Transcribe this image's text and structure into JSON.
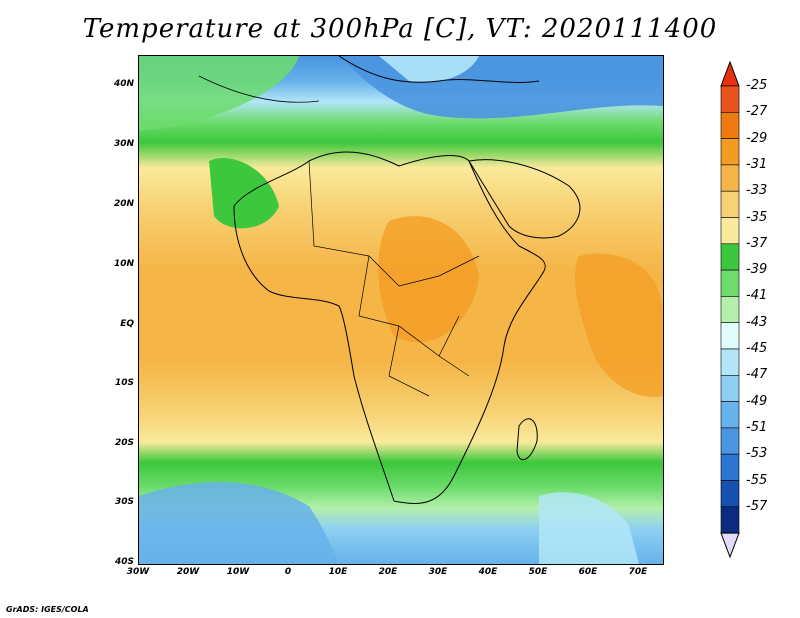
{
  "title": "Temperature at 300hPa [C], VT: 2020111400",
  "footer": "GrADS: IGES/COLA",
  "lat_labels": [
    "40N",
    "30N",
    "20N",
    "10N",
    "EQ",
    "10S",
    "20S",
    "30S",
    "40S"
  ],
  "lon_labels": [
    "30W",
    "20W",
    "10W",
    "0",
    "10E",
    "20E",
    "30E",
    "40E",
    "50E",
    "60E",
    "70E"
  ],
  "colorbar": {
    "labels": [
      "-25",
      "-27",
      "-29",
      "-31",
      "-33",
      "-35",
      "-37",
      "-39",
      "-41",
      "-43",
      "-45",
      "-47",
      "-49",
      "-51",
      "-53",
      "-55",
      "-57"
    ],
    "colors": [
      "#e8521c",
      "#f07a12",
      "#f39c22",
      "#f5b547",
      "#f7d173",
      "#faea9c",
      "#3cc73c",
      "#6ddc6d",
      "#b4f0ac",
      "#e2fbfb",
      "#b2e6f8",
      "#8fd0f2",
      "#66b2ea",
      "#4a94e0",
      "#2e74d2",
      "#1650b0",
      "#0b2a80"
    ],
    "top_arrow_color": "#e8300c",
    "bottom_arrow_color": "#e4dcfa"
  },
  "chart_data": {
    "type": "heatmap",
    "title": "Temperature at 300hPa [C], VT: 2020111400",
    "variable": "Temperature at 300hPa",
    "units": "C",
    "valid_time": "2020111400",
    "lon_range": [
      -30,
      75
    ],
    "lat_range": [
      -40,
      45
    ],
    "color_scale_min": -57,
    "color_scale_max": -25,
    "field_summary": [
      {
        "region": "Equatorial and central Africa / Indian Ocean",
        "approx_value": -31
      },
      {
        "region": "Southern Europe / Mediterranean",
        "approx_value": -49
      },
      {
        "region": "Sahara belt near 25N-32N",
        "approx_value": -37
      },
      {
        "region": "Southern Africa / South Atlantic near 25S-30S",
        "approx_value": -37
      },
      {
        "region": "South Atlantic near 35S-40S",
        "approx_value": -47
      }
    ]
  }
}
